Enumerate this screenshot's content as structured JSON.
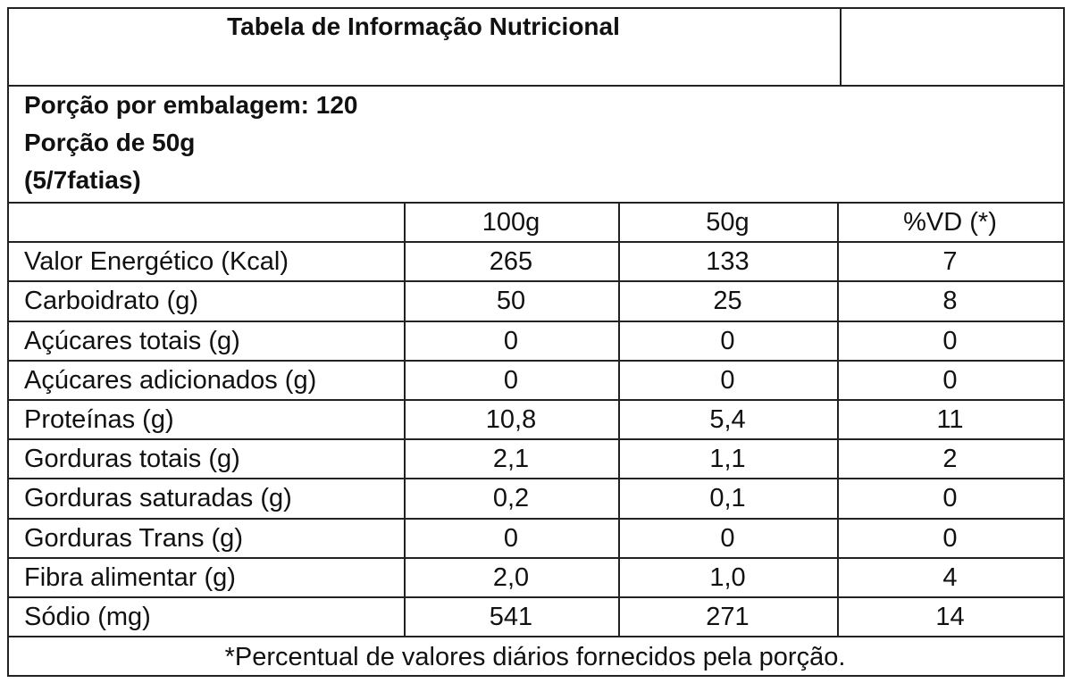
{
  "header": {
    "title": "Tabela de Informação Nutricional"
  },
  "serving": [
    "Porção por embalagem: 120",
    "Porção de 50g",
    "(5/7fatias)"
  ],
  "table": {
    "columns": [
      "100g",
      "50g",
      "%VD (*)"
    ],
    "rows": [
      [
        "Valor Energético (Kcal)",
        "265",
        "133",
        "7"
      ],
      [
        "Carboidrato (g)",
        "50",
        "25",
        "8"
      ],
      [
        "Açúcares totais (g)",
        "0",
        "0",
        "0"
      ],
      [
        "Açúcares adicionados (g)",
        "0",
        "0",
        "0"
      ],
      [
        "Proteínas (g)",
        "10,8",
        "5,4",
        "11"
      ],
      [
        "Gorduras totais (g)",
        "2,1",
        "1,1",
        "2"
      ],
      [
        "Gorduras saturadas (g)",
        "0,2",
        "0,1",
        "0"
      ],
      [
        "Gorduras Trans (g)",
        "0",
        "0",
        "0"
      ],
      [
        "Fibra alimentar (g)",
        "2,0",
        "1,0",
        "4"
      ],
      [
        "Sódio (mg)",
        "541",
        "271",
        "14"
      ]
    ]
  },
  "footnote": "*Percentual de valores diários fornecidos pela porção."
}
